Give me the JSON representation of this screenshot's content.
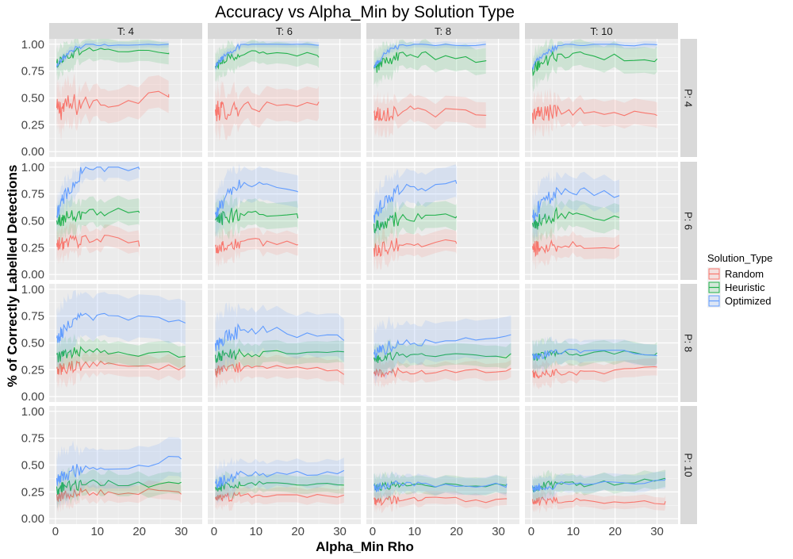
{
  "chart_data": {
    "type": "line",
    "title": "Accuracy vs Alpha_Min by Solution Type",
    "xlabel": "Alpha_Min Rho",
    "ylabel": "% of Correctly Labelled Detections",
    "xlim": [
      -1.5,
      35
    ],
    "ylim": [
      -0.05,
      1.05
    ],
    "x_ticks": [
      "0",
      "10",
      "20",
      "30"
    ],
    "y_ticks": [
      "0.00",
      "0.25",
      "0.50",
      "0.75",
      "1.00"
    ],
    "col_facet_labels": [
      "T: 4",
      "T: 6",
      "T: 8",
      "T: 10"
    ],
    "row_facet_labels": [
      "P: 4",
      "P: 6",
      "P: 8",
      "P: 10"
    ],
    "grid": true,
    "legend": {
      "title": "Solution_Type",
      "position": "right",
      "entries": [
        "Random",
        "Heuristic",
        "Optimized"
      ]
    },
    "series_colors": {
      "Random": "#f8766d",
      "Heuristic": "#22b14c",
      "Optimized": "#619cff"
    },
    "series_note": "Each panel shows Random, Heuristic and Optimized mean lines with shaded ribbons; values are approximated levels read from the chart.",
    "panels": [
      {
        "row": 0,
        "col": 0,
        "xmax": 27,
        "series": [
          {
            "name": "Random",
            "start": 0.36,
            "level": 0.45,
            "end": 0.55,
            "noise": 0.08,
            "band": 0.15
          },
          {
            "name": "Heuristic",
            "start": 0.78,
            "level": 0.95,
            "end": 0.92,
            "noise": 0.03,
            "band": 0.1
          },
          {
            "name": "Optimized",
            "start": 0.72,
            "level": 1.0,
            "end": 1.0,
            "noise": 0.02,
            "band": 0.03
          }
        ]
      },
      {
        "row": 0,
        "col": 1,
        "xmax": 25,
        "series": [
          {
            "name": "Random",
            "start": 0.35,
            "level": 0.42,
            "end": 0.42,
            "noise": 0.07,
            "band": 0.15
          },
          {
            "name": "Heuristic",
            "start": 0.75,
            "level": 0.92,
            "end": 0.9,
            "noise": 0.03,
            "band": 0.1
          },
          {
            "name": "Optimized",
            "start": 0.72,
            "level": 1.0,
            "end": 1.0,
            "noise": 0.02,
            "band": 0.03
          }
        ]
      },
      {
        "row": 0,
        "col": 2,
        "xmax": 27,
        "series": [
          {
            "name": "Random",
            "start": 0.33,
            "level": 0.38,
            "end": 0.33,
            "noise": 0.06,
            "band": 0.12
          },
          {
            "name": "Heuristic",
            "start": 0.72,
            "level": 0.9,
            "end": 0.83,
            "noise": 0.04,
            "band": 0.12
          },
          {
            "name": "Optimized",
            "start": 0.72,
            "level": 1.0,
            "end": 1.0,
            "noise": 0.02,
            "band": 0.03
          }
        ]
      },
      {
        "row": 0,
        "col": 3,
        "xmax": 30,
        "series": [
          {
            "name": "Random",
            "start": 0.32,
            "level": 0.38,
            "end": 0.38,
            "noise": 0.06,
            "band": 0.12
          },
          {
            "name": "Heuristic",
            "start": 0.72,
            "level": 0.9,
            "end": 0.85,
            "noise": 0.04,
            "band": 0.12
          },
          {
            "name": "Optimized",
            "start": 0.72,
            "level": 1.0,
            "end": 1.0,
            "noise": 0.02,
            "band": 0.03
          }
        ]
      },
      {
        "row": 1,
        "col": 0,
        "xmax": 20,
        "series": [
          {
            "name": "Random",
            "start": 0.25,
            "level": 0.33,
            "end": 0.29,
            "noise": 0.05,
            "band": 0.1
          },
          {
            "name": "Heuristic",
            "start": 0.45,
            "level": 0.58,
            "end": 0.6,
            "noise": 0.05,
            "band": 0.12
          },
          {
            "name": "Optimized",
            "start": 0.4,
            "level": 0.98,
            "end": 1.0,
            "noise": 0.05,
            "band": 0.1
          }
        ]
      },
      {
        "row": 1,
        "col": 1,
        "xmax": 20,
        "series": [
          {
            "name": "Random",
            "start": 0.22,
            "level": 0.3,
            "end": 0.3,
            "noise": 0.05,
            "band": 0.1
          },
          {
            "name": "Heuristic",
            "start": 0.45,
            "level": 0.58,
            "end": 0.54,
            "noise": 0.05,
            "band": 0.12
          },
          {
            "name": "Optimized",
            "start": 0.45,
            "level": 0.85,
            "end": 0.78,
            "noise": 0.05,
            "band": 0.15
          }
        ]
      },
      {
        "row": 1,
        "col": 2,
        "xmax": 20,
        "series": [
          {
            "name": "Random",
            "start": 0.2,
            "level": 0.28,
            "end": 0.3,
            "noise": 0.05,
            "band": 0.1
          },
          {
            "name": "Heuristic",
            "start": 0.42,
            "level": 0.53,
            "end": 0.55,
            "noise": 0.05,
            "band": 0.12
          },
          {
            "name": "Optimized",
            "start": 0.45,
            "level": 0.8,
            "end": 0.85,
            "noise": 0.05,
            "band": 0.15
          }
        ]
      },
      {
        "row": 1,
        "col": 3,
        "xmax": 21,
        "series": [
          {
            "name": "Random",
            "start": 0.22,
            "level": 0.28,
            "end": 0.28,
            "noise": 0.05,
            "band": 0.1
          },
          {
            "name": "Heuristic",
            "start": 0.42,
            "level": 0.56,
            "end": 0.53,
            "noise": 0.05,
            "band": 0.12
          },
          {
            "name": "Optimized",
            "start": 0.45,
            "level": 0.78,
            "end": 0.73,
            "noise": 0.05,
            "band": 0.15
          }
        ]
      },
      {
        "row": 2,
        "col": 0,
        "xmax": 31,
        "series": [
          {
            "name": "Random",
            "start": 0.22,
            "level": 0.3,
            "end": 0.27,
            "noise": 0.04,
            "band": 0.1
          },
          {
            "name": "Heuristic",
            "start": 0.35,
            "level": 0.42,
            "end": 0.38,
            "noise": 0.04,
            "band": 0.1
          },
          {
            "name": "Optimized",
            "start": 0.45,
            "level": 0.75,
            "end": 0.72,
            "noise": 0.05,
            "band": 0.2
          }
        ]
      },
      {
        "row": 2,
        "col": 1,
        "xmax": 31,
        "series": [
          {
            "name": "Random",
            "start": 0.22,
            "level": 0.27,
            "end": 0.23,
            "noise": 0.04,
            "band": 0.1
          },
          {
            "name": "Heuristic",
            "start": 0.35,
            "level": 0.4,
            "end": 0.4,
            "noise": 0.04,
            "band": 0.1
          },
          {
            "name": "Optimized",
            "start": 0.42,
            "level": 0.62,
            "end": 0.53,
            "noise": 0.05,
            "band": 0.2
          }
        ]
      },
      {
        "row": 2,
        "col": 2,
        "xmax": 33,
        "series": [
          {
            "name": "Random",
            "start": 0.2,
            "level": 0.23,
            "end": 0.24,
            "noise": 0.03,
            "band": 0.08
          },
          {
            "name": "Heuristic",
            "start": 0.33,
            "level": 0.38,
            "end": 0.38,
            "noise": 0.03,
            "band": 0.1
          },
          {
            "name": "Optimized",
            "start": 0.35,
            "level": 0.5,
            "end": 0.55,
            "noise": 0.04,
            "band": 0.18
          }
        ]
      },
      {
        "row": 2,
        "col": 3,
        "xmax": 30,
        "series": [
          {
            "name": "Random",
            "start": 0.2,
            "level": 0.22,
            "end": 0.26,
            "noise": 0.03,
            "band": 0.08
          },
          {
            "name": "Heuristic",
            "start": 0.35,
            "level": 0.4,
            "end": 0.41,
            "noise": 0.03,
            "band": 0.1
          },
          {
            "name": "Optimized",
            "start": 0.35,
            "level": 0.42,
            "end": 0.4,
            "noise": 0.03,
            "band": 0.1
          }
        ]
      },
      {
        "row": 3,
        "col": 0,
        "xmax": 30,
        "series": [
          {
            "name": "Random",
            "start": 0.18,
            "level": 0.25,
            "end": 0.25,
            "noise": 0.04,
            "band": 0.08
          },
          {
            "name": "Heuristic",
            "start": 0.25,
            "level": 0.33,
            "end": 0.32,
            "noise": 0.04,
            "band": 0.1
          },
          {
            "name": "Optimized",
            "start": 0.3,
            "level": 0.47,
            "end": 0.56,
            "noise": 0.05,
            "band": 0.18
          }
        ]
      },
      {
        "row": 3,
        "col": 1,
        "xmax": 31,
        "series": [
          {
            "name": "Random",
            "start": 0.16,
            "level": 0.22,
            "end": 0.22,
            "noise": 0.03,
            "band": 0.07
          },
          {
            "name": "Heuristic",
            "start": 0.25,
            "level": 0.33,
            "end": 0.33,
            "noise": 0.03,
            "band": 0.08
          },
          {
            "name": "Optimized",
            "start": 0.28,
            "level": 0.42,
            "end": 0.43,
            "noise": 0.04,
            "band": 0.12
          }
        ]
      },
      {
        "row": 3,
        "col": 2,
        "xmax": 32,
        "series": [
          {
            "name": "Random",
            "start": 0.15,
            "level": 0.18,
            "end": 0.17,
            "noise": 0.03,
            "band": 0.06
          },
          {
            "name": "Heuristic",
            "start": 0.27,
            "level": 0.32,
            "end": 0.31,
            "noise": 0.03,
            "band": 0.08
          },
          {
            "name": "Optimized",
            "start": 0.27,
            "level": 0.32,
            "end": 0.31,
            "noise": 0.03,
            "band": 0.08
          }
        ]
      },
      {
        "row": 3,
        "col": 3,
        "xmax": 32,
        "series": [
          {
            "name": "Random",
            "start": 0.15,
            "level": 0.17,
            "end": 0.15,
            "noise": 0.03,
            "band": 0.06
          },
          {
            "name": "Heuristic",
            "start": 0.27,
            "level": 0.32,
            "end": 0.36,
            "noise": 0.03,
            "band": 0.08
          },
          {
            "name": "Optimized",
            "start": 0.27,
            "level": 0.32,
            "end": 0.36,
            "noise": 0.03,
            "band": 0.08
          }
        ]
      }
    ]
  }
}
